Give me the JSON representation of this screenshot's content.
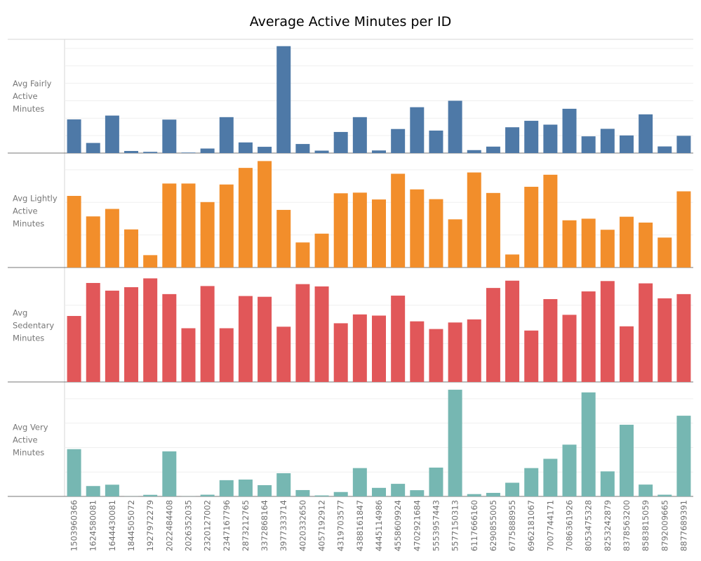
{
  "chart_data": {
    "type": "bar",
    "title": "Average Active Minutes per ID",
    "categories": [
      "1503960366",
      "1624580081",
      "1644430081",
      "1844505072",
      "1927972279",
      "2022484408",
      "2026352035",
      "2320127002",
      "2347167796",
      "2873212765",
      "3372868164",
      "3977333714",
      "4020332650",
      "4057192912",
      "4319703577",
      "4388161847",
      "4445114986",
      "4558609924",
      "4702921684",
      "5553957443",
      "5577150313",
      "6117666160",
      "6290855005",
      "6775888955",
      "6962181067",
      "7007744171",
      "7086361926",
      "8053475328",
      "8253242879",
      "8378563200",
      "8583815059",
      "8792009665",
      "8877689391"
    ],
    "series": [
      {
        "name": "Avg Fairly Active Minutes",
        "color": "#4e79a7",
        "ylim": [
          0,
          62
        ],
        "gridlines": [
          10,
          20,
          30,
          40,
          50,
          60
        ],
        "values": [
          19.3,
          5.8,
          21.5,
          1.2,
          0.7,
          19.2,
          0.3,
          2.6,
          20.6,
          6.1,
          3.6,
          61.3,
          5.2,
          1.4,
          12.1,
          20.6,
          1.5,
          13.8,
          26.3,
          12.9,
          30.0,
          1.7,
          3.7,
          14.8,
          18.5,
          16.3,
          25.4,
          9.6,
          13.9,
          10.1,
          22.2,
          3.8,
          9.9
        ]
      },
      {
        "name": "Avg Lightly Active Minutes",
        "color": "#f28e2b",
        "ylim": [
          0,
          330
        ],
        "gridlines": [
          100,
          200,
          300
        ],
        "values": [
          220,
          157,
          180,
          117,
          38,
          258,
          258,
          201,
          255,
          306,
          327,
          177,
          77,
          104,
          228,
          230,
          209,
          288,
          240,
          210,
          148,
          292,
          229,
          40,
          248,
          285,
          145,
          150,
          116,
          156,
          138,
          92,
          234
        ]
      },
      {
        "name": "Avg Sedentary Minutes",
        "color": "#e15759",
        "ylim": [
          0,
          1400
        ],
        "gridlines": [
          500,
          1000
        ],
        "values": [
          860,
          1290,
          1190,
          1235,
          1350,
          1145,
          700,
          1250,
          700,
          1120,
          1110,
          720,
          1275,
          1245,
          765,
          880,
          865,
          1125,
          790,
          690,
          775,
          815,
          1225,
          1320,
          670,
          1080,
          875,
          1180,
          1315,
          725,
          1285,
          1090,
          1145
        ]
      },
      {
        "name": "Avg Very Active Minutes",
        "color": "#76b7b2",
        "ylim": [
          0,
          88
        ],
        "gridlines": [
          20,
          40,
          60,
          80
        ],
        "values": [
          38.7,
          8.5,
          9.6,
          0.1,
          1.3,
          36.9,
          0.1,
          1.4,
          13.3,
          13.8,
          9.2,
          19.0,
          5.2,
          0.8,
          3.6,
          23.2,
          7.0,
          10.3,
          5.1,
          23.6,
          87.4,
          1.9,
          2.9,
          11.2,
          23.2,
          30.8,
          42.4,
          85.2,
          20.5,
          58.7,
          9.7,
          1.4,
          66.1
        ]
      }
    ]
  }
}
